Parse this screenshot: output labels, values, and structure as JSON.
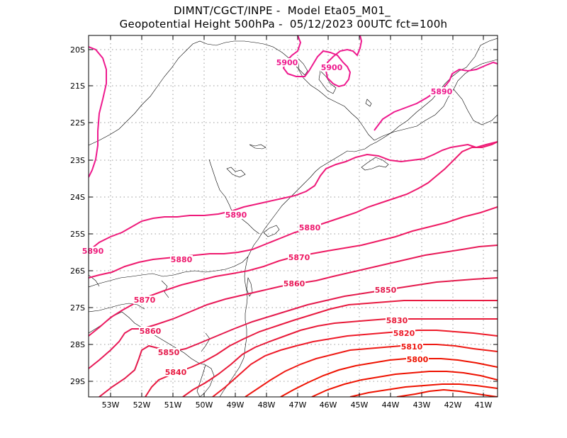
{
  "header": {
    "line1": "DIMNT/CGCT/INPE -  Model Eta05_M01_",
    "line2": "Geopotential Height 500hPa -  05/12/2023 00UTC fct=100h"
  },
  "axes": {
    "lat_ticks": [
      "20S",
      "21S",
      "22S",
      "23S",
      "24S",
      "25S",
      "26S",
      "27S",
      "28S",
      "29S"
    ],
    "lon_ticks": [
      "53W",
      "52W",
      "51W",
      "50W",
      "49W",
      "48W",
      "47W",
      "46W",
      "45W",
      "44W",
      "43W",
      "42W",
      "41W"
    ]
  },
  "contours": {
    "levels": [
      {
        "value": 5900,
        "color": "#ee1a8e"
      },
      {
        "value": 5890,
        "color": "#ee1a8e"
      },
      {
        "value": 5880,
        "color": "#ee1a70"
      },
      {
        "value": 5870,
        "color": "#ee1a64"
      },
      {
        "value": 5860,
        "color": "#e81a58"
      },
      {
        "value": 5850,
        "color": "#e41a48"
      },
      {
        "value": 5840,
        "color": "#e81a40"
      },
      {
        "value": 5830,
        "color": "#e81a38"
      },
      {
        "value": 5820,
        "color": "#ee1a20"
      },
      {
        "value": 5810,
        "color": "#ee1a10"
      },
      {
        "value": 5800,
        "color": "#ee1200"
      }
    ],
    "labels": [
      {
        "text": "5900"
      },
      {
        "text": "5900"
      },
      {
        "text": "5890"
      },
      {
        "text": "5890"
      },
      {
        "text": "5890"
      },
      {
        "text": "5880"
      },
      {
        "text": "5880"
      },
      {
        "text": "5870"
      },
      {
        "text": "5870"
      },
      {
        "text": "5860"
      },
      {
        "text": "5860"
      },
      {
        "text": "5850"
      },
      {
        "text": "5850"
      },
      {
        "text": "5840"
      },
      {
        "text": "5830"
      },
      {
        "text": "5820"
      },
      {
        "text": "5810"
      },
      {
        "text": "5800"
      }
    ]
  }
}
